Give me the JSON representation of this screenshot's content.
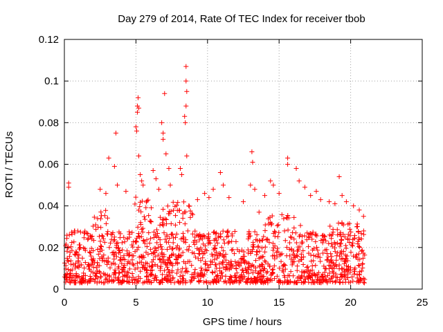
{
  "chart_data": {
    "type": "scatter",
    "title": "Day 279 of 2014, Rate Of TEC Index for receiver tbob",
    "xlabel": "GPS time / hours",
    "ylabel": "ROTI / TECUs",
    "xlim": [
      0,
      25
    ],
    "ylim": [
      0,
      0.12
    ],
    "xticks": [
      0,
      5,
      10,
      15,
      20,
      25
    ],
    "xtick_labels": [
      "0",
      "5",
      "10",
      "15",
      "20",
      "25"
    ],
    "yticks": [
      0,
      0.02,
      0.04,
      0.06,
      0.08,
      0.1,
      0.12
    ],
    "ytick_labels": [
      "0",
      "0.02",
      "0.04",
      "0.06",
      "0.08",
      "0.1",
      "0.12"
    ],
    "grid": true,
    "marker": "plus",
    "color": "#ff0000",
    "data_range_hours": [
      0,
      21
    ],
    "series": [
      {
        "name": "ROTI",
        "points": [
          [
            0.3,
            0.049
          ],
          [
            0.3,
            0.051
          ],
          [
            2.5,
            0.048
          ],
          [
            2.9,
            0.046
          ],
          [
            3.1,
            0.063
          ],
          [
            3.5,
            0.059
          ],
          [
            3.6,
            0.075
          ],
          [
            3.7,
            0.05
          ],
          [
            4.3,
            0.047
          ],
          [
            5.0,
            0.078
          ],
          [
            5.05,
            0.076
          ],
          [
            5.1,
            0.085
          ],
          [
            5.1,
            0.088
          ],
          [
            5.15,
            0.092
          ],
          [
            5.2,
            0.087
          ],
          [
            5.2,
            0.064
          ],
          [
            5.3,
            0.055
          ],
          [
            5.4,
            0.052
          ],
          [
            5.5,
            0.05
          ],
          [
            6.2,
            0.057
          ],
          [
            6.4,
            0.053
          ],
          [
            6.6,
            0.048
          ],
          [
            6.8,
            0.08
          ],
          [
            6.9,
            0.075
          ],
          [
            6.9,
            0.072
          ],
          [
            7.0,
            0.094
          ],
          [
            7.1,
            0.065
          ],
          [
            7.3,
            0.058
          ],
          [
            7.4,
            0.05
          ],
          [
            8.1,
            0.058
          ],
          [
            8.2,
            0.055
          ],
          [
            8.4,
            0.083
          ],
          [
            8.45,
            0.08
          ],
          [
            8.5,
            0.107
          ],
          [
            8.5,
            0.1
          ],
          [
            8.55,
            0.095
          ],
          [
            8.5,
            0.088
          ],
          [
            8.55,
            0.064
          ],
          [
            9.3,
            0.043
          ],
          [
            9.8,
            0.046
          ],
          [
            10.1,
            0.044
          ],
          [
            10.4,
            0.048
          ],
          [
            10.9,
            0.056
          ],
          [
            11.1,
            0.05
          ],
          [
            11.5,
            0.044
          ],
          [
            12.5,
            0.042
          ],
          [
            13.0,
            0.05
          ],
          [
            13.1,
            0.066
          ],
          [
            13.15,
            0.061
          ],
          [
            13.3,
            0.048
          ],
          [
            13.6,
            0.037
          ],
          [
            14.0,
            0.045
          ],
          [
            14.4,
            0.052
          ],
          [
            14.6,
            0.05
          ],
          [
            15.0,
            0.046
          ],
          [
            15.6,
            0.063
          ],
          [
            15.6,
            0.06
          ],
          [
            16.2,
            0.058
          ],
          [
            16.4,
            0.052
          ],
          [
            16.8,
            0.049
          ],
          [
            17.2,
            0.045
          ],
          [
            17.6,
            0.047
          ],
          [
            17.9,
            0.043
          ],
          [
            18.5,
            0.042
          ],
          [
            18.9,
            0.041
          ],
          [
            19.2,
            0.054
          ],
          [
            19.4,
            0.045
          ],
          [
            19.7,
            0.042
          ],
          [
            20.2,
            0.04
          ],
          [
            20.6,
            0.038
          ],
          [
            20.9,
            0.035
          ]
        ]
      }
    ]
  }
}
